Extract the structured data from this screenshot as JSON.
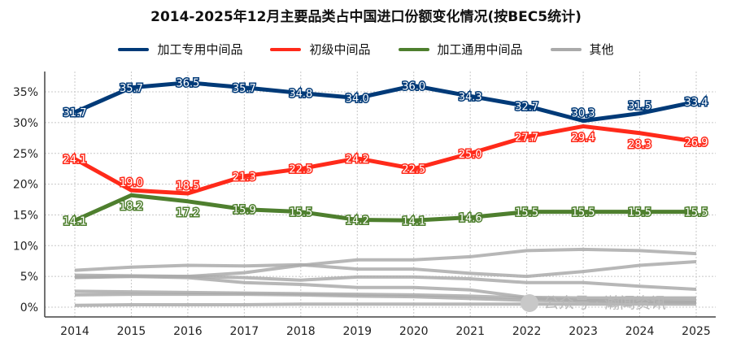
{
  "chart_data": {
    "type": "line",
    "title": "2014-2025年12月主要品类占中国进口份额变化情况(按BEC5统计)",
    "x": [
      "2014",
      "2015",
      "2016",
      "2017",
      "2018",
      "2019",
      "2020",
      "2021",
      "2022",
      "2023",
      "2024",
      "2025"
    ],
    "ylim": [
      0,
      38
    ],
    "yticks": [
      0,
      5,
      10,
      15,
      20,
      25,
      30,
      35
    ],
    "ytick_format": "%",
    "grid": true,
    "legend_position": "top",
    "series": [
      {
        "name": "加工专用中间品",
        "color": "#003a78",
        "labels": true,
        "values": [
          31.7,
          35.7,
          36.5,
          35.7,
          34.8,
          34.0,
          36.0,
          34.3,
          32.7,
          30.3,
          31.5,
          33.4
        ]
      },
      {
        "name": "初级中间品",
        "color": "#ff2a1a",
        "labels": true,
        "values": [
          24.1,
          19.0,
          18.5,
          21.3,
          22.5,
          24.2,
          22.5,
          25.0,
          27.7,
          29.4,
          28.3,
          26.9
        ]
      },
      {
        "name": "加工通用中间品",
        "color": "#4e7f2e",
        "labels": true,
        "values": [
          14.1,
          18.2,
          17.2,
          15.9,
          15.5,
          14.2,
          14.1,
          14.6,
          15.5,
          15.5,
          15.5,
          15.5
        ]
      },
      {
        "name": "其他",
        "color": "#aaaaaa",
        "labels": false,
        "values": [
          4.9,
          5.0,
          5.0,
          5.6,
          6.8,
          7.7,
          7.7,
          8.2,
          9.2,
          9.4,
          9.2,
          8.7
        ]
      },
      {
        "color": "#aaaaaa",
        "labels": false,
        "values": [
          6.0,
          6.5,
          6.8,
          6.7,
          6.9,
          6.2,
          6.2,
          5.5,
          5.0,
          5.8,
          6.8,
          7.4
        ]
      },
      {
        "color": "#aaaaaa",
        "labels": false,
        "values": [
          5.2,
          5.1,
          5.0,
          4.8,
          4.4,
          4.9,
          4.9,
          4.6,
          4.0,
          4.0,
          3.4,
          2.9
        ]
      },
      {
        "color": "#aaaaaa",
        "labels": false,
        "values": [
          4.8,
          5.0,
          4.8,
          4.0,
          3.7,
          3.2,
          3.2,
          2.8,
          1.6,
          1.5,
          1.5,
          1.5
        ]
      },
      {
        "color": "#aaaaaa",
        "labels": false,
        "values": [
          2.6,
          2.5,
          2.4,
          2.3,
          2.2,
          2.1,
          2.0,
          1.8,
          1.5,
          1.1,
          1.0,
          1.0
        ]
      },
      {
        "color": "#aaaaaa",
        "labels": false,
        "values": [
          2.0,
          2.1,
          2.1,
          2.1,
          2.0,
          1.8,
          1.7,
          1.4,
          1.1,
          1.0,
          0.9,
          0.8
        ]
      },
      {
        "color": "#aaaaaa",
        "labels": false,
        "values": [
          0.3,
          0.4,
          0.4,
          0.4,
          0.5,
          0.5,
          0.5,
          0.5,
          0.5,
          0.5,
          0.5,
          0.5
        ]
      }
    ]
  },
  "watermark": "公众号 · 瀚闻资讯"
}
